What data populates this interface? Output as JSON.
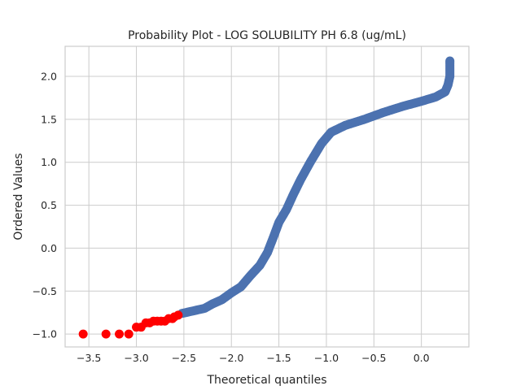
{
  "chart_data": {
    "type": "scatter",
    "title": "Probability Plot - LOG SOLUBILITY PH 6.8 (ug/mL)",
    "xlabel": "Theoretical quantiles",
    "ylabel": "Ordered Values",
    "xlim": [
      -3.75,
      0.5
    ],
    "ylim": [
      -1.15,
      2.35
    ],
    "xticks": [
      -3.5,
      -3.0,
      -2.5,
      -2.0,
      -1.5,
      -1.0,
      -0.5,
      0.0
    ],
    "xtick_labels": [
      "−3.5",
      "−3.0",
      "−2.5",
      "−2.0",
      "−1.5",
      "−1.0",
      "−0.5",
      "0.0"
    ],
    "yticks": [
      -1.0,
      -0.5,
      0.0,
      0.5,
      1.0,
      1.5,
      2.0
    ],
    "ytick_labels": [
      "−1.0",
      "−0.5",
      "0.0",
      "0.5",
      "1.0",
      "1.5",
      "2.0"
    ],
    "grid": true,
    "series": [
      {
        "color": "#ff0000",
        "points": [
          [
            -3.56,
            -1.0
          ],
          [
            -3.32,
            -1.0
          ],
          [
            -3.18,
            -1.0
          ],
          [
            -3.08,
            -1.0
          ],
          [
            -3.0,
            -0.92
          ],
          [
            -2.95,
            -0.92
          ],
          [
            -2.9,
            -0.87
          ],
          [
            -2.86,
            -0.87
          ],
          [
            -2.82,
            -0.85
          ],
          [
            -2.78,
            -0.85
          ],
          [
            -2.74,
            -0.85
          ],
          [
            -2.7,
            -0.85
          ],
          [
            -2.66,
            -0.82
          ],
          [
            -2.62,
            -0.82
          ],
          [
            -2.6,
            -0.8
          ],
          [
            -2.56,
            -0.78
          ]
        ]
      },
      {
        "color": "#4c72b0",
        "curve": [
          [
            -2.52,
            -0.76
          ],
          [
            -2.4,
            -0.73
          ],
          [
            -2.28,
            -0.7
          ],
          [
            -2.2,
            -0.65
          ],
          [
            -2.1,
            -0.6
          ],
          [
            -2.0,
            -0.52
          ],
          [
            -1.9,
            -0.45
          ],
          [
            -1.8,
            -0.32
          ],
          [
            -1.7,
            -0.2
          ],
          [
            -1.62,
            -0.05
          ],
          [
            -1.55,
            0.15
          ],
          [
            -1.5,
            0.3
          ],
          [
            -1.42,
            0.45
          ],
          [
            -1.35,
            0.62
          ],
          [
            -1.27,
            0.8
          ],
          [
            -1.17,
            1.0
          ],
          [
            -1.05,
            1.22
          ],
          [
            -0.95,
            1.35
          ],
          [
            -0.8,
            1.43
          ],
          [
            -0.6,
            1.5
          ],
          [
            -0.4,
            1.58
          ],
          [
            -0.2,
            1.65
          ],
          [
            0.0,
            1.71
          ],
          [
            0.15,
            1.76
          ],
          [
            0.25,
            1.82
          ],
          [
            0.28,
            1.9
          ],
          [
            0.3,
            2.0
          ],
          [
            0.3,
            2.15
          ],
          [
            0.3,
            2.18
          ]
        ]
      }
    ]
  }
}
